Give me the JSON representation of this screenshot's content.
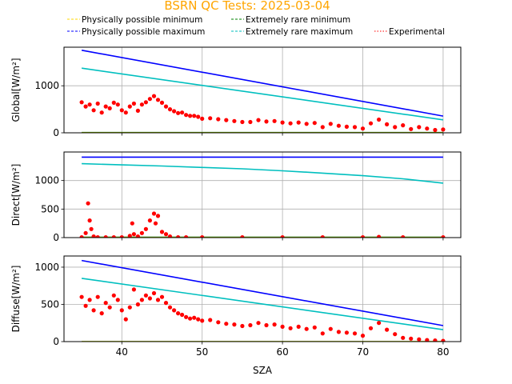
{
  "chart_data": {
    "type": "scatter",
    "title": "BSRN QC Tests: 2025-03-04",
    "title_color": "#FFA500",
    "xlabel": "SZA",
    "xlim": [
      32.8,
      82.2
    ],
    "xticks": [
      40,
      50,
      60,
      70,
      80
    ],
    "grid": true,
    "legend": {
      "placement": "top",
      "entries": [
        {
          "label": "Physically possible minimum",
          "color": "#FFD700",
          "style": "dashed"
        },
        {
          "label": "Physically possible maximum",
          "color": "#0000FF",
          "style": "dashed"
        },
        {
          "label": "Extremely rare minimum",
          "color": "#008000",
          "style": "dashed"
        },
        {
          "label": "Extremely rare maximum",
          "color": "#00BFBF",
          "style": "dashed"
        },
        {
          "label": "Experimental",
          "color": "#FF0000",
          "style": "dotted"
        }
      ]
    },
    "panels": [
      {
        "ylabel": "Global[W/m²]",
        "ylim": [
          0,
          1820
        ],
        "yticks": [
          0,
          1000
        ],
        "lines": [
          {
            "role": "ppl_max",
            "color": "#0000FF",
            "x": [
              35,
              80
            ],
            "y": [
              1755,
              355
            ]
          },
          {
            "role": "erl_max",
            "color": "#00BFBF",
            "x": [
              35,
              80
            ],
            "y": [
              1375,
              275
            ]
          },
          {
            "role": "erl_min",
            "color": "#008000",
            "x": [
              35,
              80
            ],
            "y": [
              5,
              5
            ]
          },
          {
            "role": "ppl_min",
            "color": "#FFD700",
            "x": [
              35,
              80
            ],
            "y": [
              0,
              0
            ]
          }
        ],
        "experimental": {
          "color": "#FF0000",
          "x": [
            35,
            35.5,
            36,
            36.5,
            37,
            37.5,
            38,
            38.5,
            39,
            39.5,
            40,
            40.5,
            41,
            41.5,
            42,
            42.5,
            43,
            43.5,
            44,
            44.5,
            45,
            45.5,
            46,
            46.5,
            47,
            47.5,
            48,
            48.5,
            49,
            49.5,
            50,
            51,
            52,
            53,
            54,
            55,
            56,
            57,
            58,
            59,
            60,
            61,
            62,
            63,
            64,
            65,
            66,
            67,
            68,
            69,
            70,
            71,
            72,
            73,
            74,
            75,
            76,
            77,
            78,
            79,
            80
          ],
          "y": [
            650,
            560,
            600,
            480,
            620,
            430,
            560,
            520,
            640,
            600,
            480,
            430,
            560,
            620,
            470,
            600,
            650,
            720,
            780,
            700,
            640,
            560,
            500,
            460,
            420,
            430,
            380,
            360,
            360,
            340,
            300,
            310,
            290,
            270,
            250,
            230,
            230,
            270,
            240,
            250,
            220,
            200,
            220,
            190,
            210,
            120,
            190,
            150,
            130,
            120,
            90,
            200,
            280,
            180,
            120,
            160,
            80,
            120,
            90,
            60,
            70
          ]
        }
      },
      {
        "ylabel": "Direct[W/m²]",
        "ylim": [
          0,
          1500
        ],
        "yticks": [
          0,
          500,
          1000
        ],
        "lines": [
          {
            "role": "ppl_max",
            "color": "#0000FF",
            "x": [
              35,
              80
            ],
            "y": [
              1410,
              1410
            ]
          },
          {
            "role": "erl_max",
            "color": "#00BFBF",
            "x": [
              35,
              40,
              45,
              50,
              55,
              60,
              65,
              70,
              75,
              80
            ],
            "y": [
              1295,
              1275,
              1255,
              1230,
              1205,
              1170,
              1130,
              1085,
              1030,
              955
            ]
          },
          {
            "role": "erl_min",
            "color": "#008000",
            "x": [
              35,
              80
            ],
            "y": [
              5,
              5
            ]
          },
          {
            "role": "ppl_min",
            "color": "#FFD700",
            "x": [
              35,
              80
            ],
            "y": [
              0,
              0
            ]
          }
        ],
        "experimental": {
          "color": "#FF0000",
          "x": [
            35,
            35.5,
            35.8,
            36,
            36.2,
            36.5,
            37,
            38,
            39,
            40,
            41,
            41.3,
            41.5,
            42,
            42.5,
            43,
            43.5,
            44,
            44.2,
            44.5,
            45,
            45.5,
            46,
            47,
            48,
            50,
            55,
            60,
            65,
            70,
            72,
            75,
            80
          ],
          "y": [
            5,
            80,
            600,
            300,
            150,
            20,
            5,
            5,
            5,
            5,
            30,
            250,
            60,
            20,
            80,
            150,
            300,
            420,
            250,
            380,
            100,
            60,
            20,
            5,
            5,
            5,
            5,
            5,
            5,
            5,
            12,
            5,
            5
          ]
        }
      },
      {
        "ylabel": "Diffuse[W/m²]",
        "ylim": [
          0,
          1150
        ],
        "yticks": [
          0,
          500,
          1000
        ],
        "lines": [
          {
            "role": "ppl_max",
            "color": "#0000FF",
            "x": [
              35,
              80
            ],
            "y": [
              1090,
              215
            ]
          },
          {
            "role": "erl_max",
            "color": "#00BFBF",
            "x": [
              35,
              80
            ],
            "y": [
              850,
              160
            ]
          },
          {
            "role": "erl_min",
            "color": "#008000",
            "x": [
              35,
              80
            ],
            "y": [
              0,
              0
            ]
          },
          {
            "role": "ppl_min",
            "color": "#FFD700",
            "x": [
              35,
              80
            ],
            "y": [
              0,
              0
            ]
          }
        ],
        "experimental": {
          "color": "#FF0000",
          "x": [
            35,
            35.5,
            36,
            36.5,
            37,
            37.5,
            38,
            38.5,
            39,
            39.5,
            40,
            40.5,
            41,
            41.5,
            42,
            42.5,
            43,
            43.5,
            44,
            44.5,
            45,
            45.5,
            46,
            46.5,
            47,
            47.5,
            48,
            48.5,
            49,
            49.5,
            50,
            51,
            52,
            53,
            54,
            55,
            56,
            57,
            58,
            59,
            60,
            61,
            62,
            63,
            64,
            65,
            66,
            67,
            68,
            69,
            70,
            71,
            72,
            73,
            74,
            75,
            76,
            77,
            78,
            79,
            80
          ],
          "y": [
            600,
            480,
            560,
            420,
            600,
            380,
            520,
            460,
            620,
            560,
            420,
            300,
            460,
            700,
            500,
            560,
            620,
            580,
            650,
            560,
            600,
            520,
            460,
            420,
            380,
            360,
            330,
            310,
            320,
            300,
            280,
            290,
            260,
            240,
            230,
            210,
            220,
            250,
            220,
            230,
            200,
            180,
            200,
            170,
            190,
            110,
            170,
            130,
            120,
            110,
            80,
            180,
            250,
            160,
            100,
            50,
            40,
            30,
            20,
            15,
            10
          ]
        }
      }
    ]
  }
}
